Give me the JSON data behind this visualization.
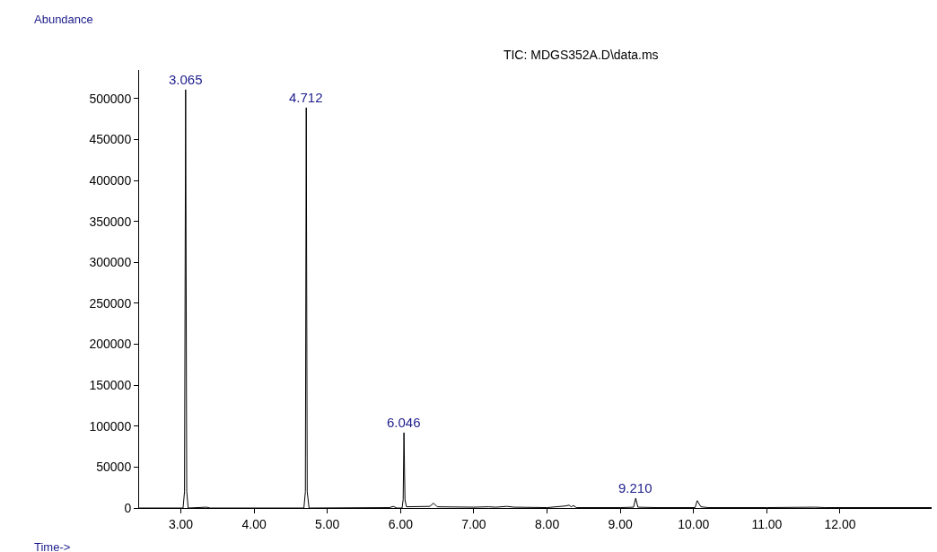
{
  "chart_data": {
    "type": "line",
    "title": "TIC: MDGS352A.D\\data.ms",
    "xlabel": "Time->",
    "x": [
      2.43,
      3.03,
      3.05,
      3.065,
      3.08,
      3.1,
      3.35,
      3.4,
      4.68,
      4.7,
      4.712,
      4.725,
      4.75,
      5.85,
      5.9,
      5.95,
      6.02,
      6.035,
      6.046,
      6.06,
      6.08,
      6.4,
      6.45,
      6.5,
      7.0,
      7.2,
      7.3,
      7.45,
      7.55,
      8.0,
      8.25,
      8.3,
      8.33,
      8.36,
      8.4,
      9.0,
      9.18,
      9.21,
      9.24,
      9.5,
      10.02,
      10.05,
      10.1,
      10.2,
      11.0,
      11.65,
      11.8,
      13.25
    ],
    "series": [
      {
        "color": "#000000",
        "values": [
          0,
          0,
          20000,
          511000,
          20000,
          0,
          1000,
          0,
          0,
          20000,
          489000,
          20000,
          0,
          500,
          2000,
          0,
          0,
          10000,
          92000,
          10000,
          1500,
          2000,
          6000,
          1500,
          1000,
          1500,
          1000,
          2000,
          1000,
          500,
          2500,
          3500,
          1500,
          3000,
          500,
          500,
          1000,
          12000,
          1000,
          500,
          500,
          9000,
          1500,
          500,
          500,
          1000,
          500,
          500
        ]
      }
    ],
    "annotations": [
      "Abundance",
      {
        "text": "3.065",
        "x": 3.065,
        "y": 511000
      },
      {
        "text": "4.712",
        "x": 4.712,
        "y": 489000
      },
      {
        "text": "6.046",
        "x": 6.046,
        "y": 92000
      },
      {
        "text": "9.210",
        "x": 9.21,
        "y": 12000
      }
    ],
    "xlim": [
      2.43,
      13.25
    ],
    "ylim": [
      0,
      535000
    ],
    "xticks": [
      {
        "value": 3,
        "label": "3.00"
      },
      {
        "value": 4,
        "label": "4.00"
      },
      {
        "value": 5,
        "label": "5.00"
      },
      {
        "value": 6,
        "label": "6.00"
      },
      {
        "value": 7,
        "label": "7.00"
      },
      {
        "value": 8,
        "label": "8.00"
      },
      {
        "value": 9,
        "label": "9.00"
      },
      {
        "value": 10,
        "label": "10.00"
      },
      {
        "value": 11,
        "label": "11.00"
      },
      {
        "value": 12,
        "label": "12.00"
      }
    ],
    "yticks": [
      0,
      50000,
      100000,
      150000,
      200000,
      250000,
      300000,
      350000,
      400000,
      450000,
      500000
    ],
    "marker": "none",
    "line_style": "solid"
  }
}
